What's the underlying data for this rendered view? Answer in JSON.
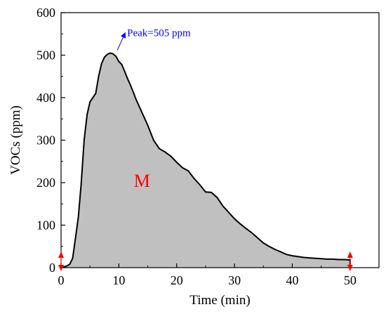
{
  "chart_data": {
    "type": "area",
    "xlabel": "Time (min)",
    "ylabel": "VOCs (ppm)",
    "xlim": [
      0,
      55
    ],
    "ylim": [
      0,
      600
    ],
    "xticks": [
      0,
      10,
      20,
      30,
      40,
      50
    ],
    "yticks": [
      0,
      100,
      200,
      300,
      400,
      500,
      600
    ],
    "series": [
      {
        "x": [
          0,
          0.5,
          1,
          1.5,
          2,
          2.5,
          3,
          3.5,
          4,
          4.5,
          5,
          5.5,
          6,
          6.5,
          7,
          7.5,
          8,
          8.5,
          9,
          9.5,
          10,
          10.5,
          11,
          11.5,
          12,
          13,
          14,
          15,
          16,
          17,
          18,
          19,
          20,
          21,
          22,
          23,
          24,
          25,
          26,
          27,
          28,
          29,
          30,
          31,
          32,
          33,
          34,
          35,
          36,
          37,
          38,
          39,
          40,
          41,
          42,
          43,
          44,
          45,
          46,
          47,
          48,
          49,
          50
        ],
        "y": [
          0,
          2,
          4,
          8,
          22,
          70,
          120,
          200,
          300,
          360,
          390,
          400,
          410,
          450,
          480,
          495,
          502,
          505,
          503,
          497,
          485,
          478,
          462,
          445,
          430,
          395,
          365,
          335,
          300,
          280,
          272,
          262,
          248,
          235,
          228,
          210,
          195,
          178,
          177,
          165,
          145,
          130,
          115,
          103,
          92,
          82,
          70,
          58,
          50,
          43,
          37,
          31,
          28,
          26,
          24,
          23,
          22,
          21,
          20,
          20,
          19,
          19,
          18
        ],
        "color": "#000000",
        "fill": "#c0c0c0"
      }
    ],
    "annotations": [
      {
        "text": "Peak=505 ppm",
        "x": 9,
        "y": 505,
        "color": "#0000ff"
      },
      {
        "text": "M",
        "x": 14,
        "y": 190,
        "color": "#ff0000"
      }
    ],
    "markers": [
      {
        "x": 0,
        "color": "#ff0000"
      },
      {
        "x": 50,
        "color": "#ff0000"
      }
    ],
    "grid": false,
    "legend": "none"
  }
}
